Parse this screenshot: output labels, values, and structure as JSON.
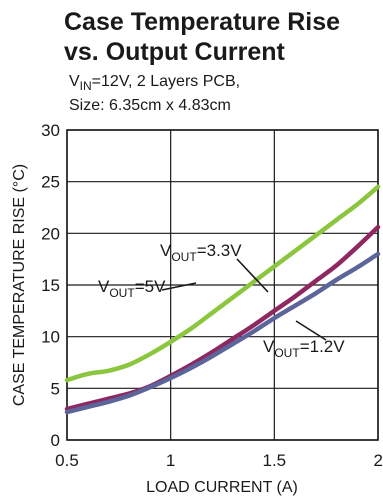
{
  "title_line1": "Case Temperature Rise",
  "title_line2": "vs. Output Current",
  "subtitle_line1": {
    "main": "V",
    "sub": "IN",
    "rest": "=12V, 2 Layers PCB,"
  },
  "subtitle_line2": "Size: 6.35cm x 4.83cm",
  "chart_data": {
    "type": "line",
    "xlabel": "LOAD CURRENT (A)",
    "ylabel": "CASE TEMPERATURE RISE (°C)",
    "xlim": [
      0.5,
      2
    ],
    "ylim": [
      0,
      30
    ],
    "x_ticks": [
      "0.5",
      "1",
      "1.5",
      "2"
    ],
    "y_ticks": [
      "0",
      "5",
      "10",
      "15",
      "20",
      "25",
      "30"
    ],
    "grid": true,
    "series": [
      {
        "name": "VOUT=5V",
        "label": {
          "main": "V",
          "sub": "OUT",
          "rest": "=5V"
        },
        "color": "#8cc63e",
        "x": [
          0.5,
          0.6,
          0.7,
          0.8,
          0.9,
          1.0,
          1.1,
          1.2,
          1.3,
          1.4,
          1.5,
          1.6,
          1.7,
          1.8,
          1.9,
          2.0
        ],
        "y": [
          5.8,
          6.4,
          6.7,
          7.3,
          8.3,
          9.5,
          10.8,
          12.3,
          13.8,
          15.3,
          16.8,
          18.3,
          19.8,
          21.3,
          22.8,
          24.5
        ]
      },
      {
        "name": "VOUT=3.3V",
        "label": {
          "main": "V",
          "sub": "OUT",
          "rest": "=3.3V"
        },
        "color": "#8e2860",
        "x": [
          0.5,
          0.6,
          0.7,
          0.8,
          0.9,
          1.0,
          1.1,
          1.2,
          1.3,
          1.4,
          1.5,
          1.6,
          1.7,
          1.8,
          1.9,
          2.0
        ],
        "y": [
          3.0,
          3.5,
          4.0,
          4.5,
          5.2,
          6.2,
          7.3,
          8.5,
          9.8,
          11.1,
          12.5,
          13.9,
          15.4,
          16.9,
          18.7,
          20.6
        ]
      },
      {
        "name": "VOUT=1.2V",
        "label": {
          "main": "V",
          "sub": "OUT",
          "rest": "=1.2V"
        },
        "color": "#5b659a",
        "x": [
          0.5,
          0.6,
          0.7,
          0.8,
          0.9,
          1.0,
          1.1,
          1.2,
          1.3,
          1.4,
          1.5,
          1.6,
          1.7,
          1.8,
          1.9,
          2.0
        ],
        "y": [
          2.7,
          3.2,
          3.7,
          4.3,
          5.1,
          6.0,
          7.0,
          8.1,
          9.3,
          10.5,
          11.8,
          13.0,
          14.2,
          15.5,
          16.7,
          18.0
        ]
      }
    ]
  }
}
